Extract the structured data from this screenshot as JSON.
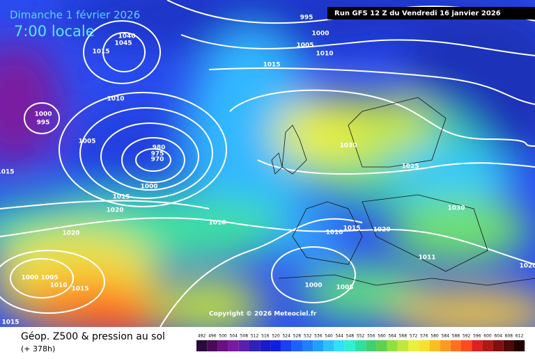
{
  "header": {
    "date": "Dimanche 1 février 2026",
    "local_time": "7:00 locale",
    "run": "Run GFS 12 Z du Vendredi 16 janvier 2026"
  },
  "isobar_labels": [
    995,
    1000,
    1005,
    1010,
    1015,
    1040,
    1045,
    1015,
    1010,
    1000,
    995,
    1005,
    980,
    975,
    970,
    1000,
    1015,
    1020,
    1010,
    1020,
    1030,
    1025,
    1030,
    1010,
    1015,
    1020,
    1011,
    1000,
    1005,
    1010,
    1015,
    1000,
    1005,
    1015,
    1015,
    1020
  ],
  "copyright": "Copyright © 2026 Meteociel.fr",
  "footer": {
    "title": "Géop. Z500 & pression au sol",
    "lead": "(+ 378h)"
  },
  "legend": {
    "labels": [
      492,
      496,
      500,
      504,
      508,
      512,
      516,
      520,
      524,
      528,
      532,
      536,
      540,
      544,
      548,
      552,
      556,
      560,
      564,
      568,
      572,
      576,
      580,
      584,
      588,
      592,
      596,
      600,
      604,
      608,
      612
    ]
  }
}
